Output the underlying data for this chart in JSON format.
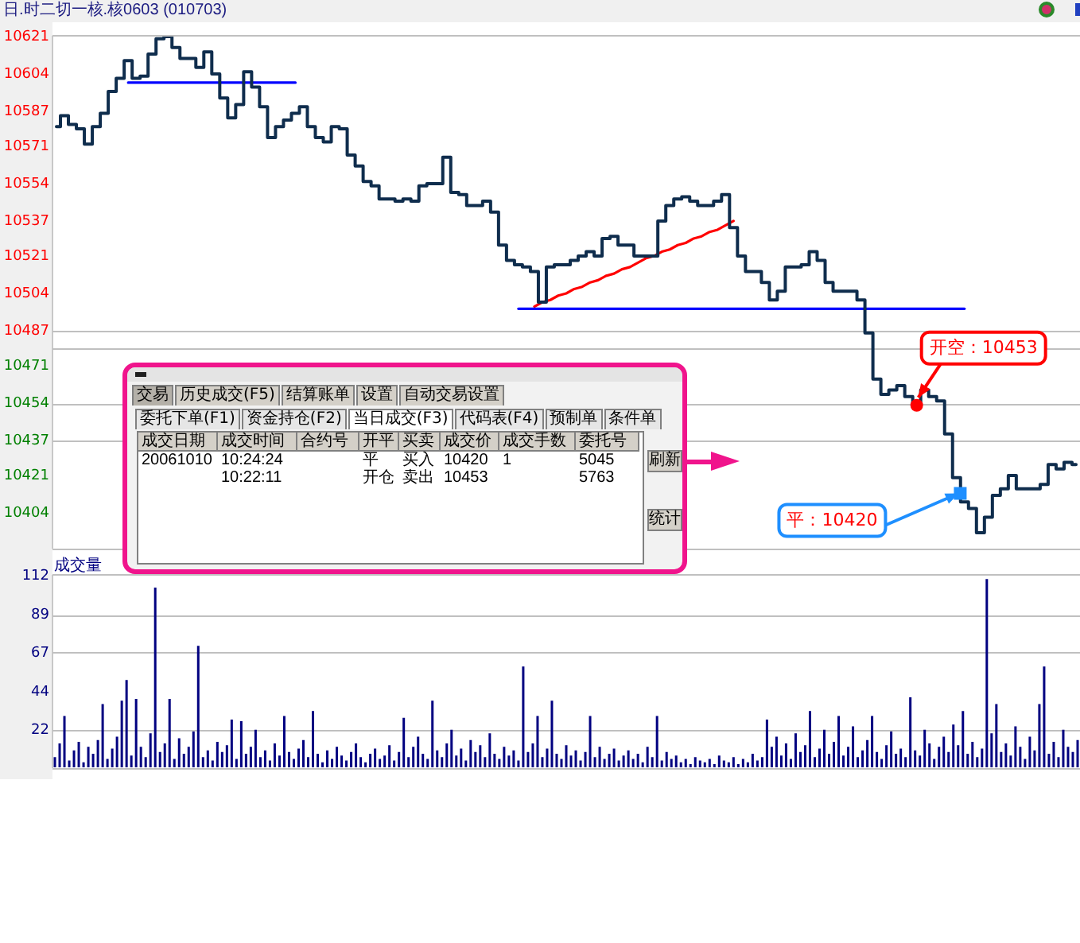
{
  "chart_data": [
    {
      "type": "step",
      "title": "日.时二切一核.核0603 (010703)",
      "categories": [
        null,
        null,
        null,
        null,
        null,
        null,
        null,
        null,
        null,
        null,
        null,
        null,
        null,
        null,
        null,
        null,
        null,
        null,
        null,
        null,
        null,
        null,
        null,
        null,
        null,
        null,
        null,
        null,
        null,
        null,
        null,
        null,
        null,
        null,
        null,
        null,
        null,
        null,
        null,
        null,
        null,
        null,
        null,
        null,
        null,
        null,
        null,
        null,
        null,
        null,
        null,
        null,
        null,
        null,
        null,
        null,
        null,
        null,
        null,
        null,
        null,
        null,
        null,
        null,
        null,
        null,
        null,
        null,
        null,
        null,
        null,
        null,
        null,
        null,
        null,
        null,
        null,
        null,
        null,
        null,
        null,
        null,
        null,
        null,
        null,
        null,
        null,
        null,
        null,
        null,
        null,
        null,
        null,
        null,
        null,
        null,
        null,
        null,
        null,
        null,
        null,
        null,
        null,
        null,
        null,
        null,
        null,
        null,
        null,
        null,
        null,
        null,
        null,
        null,
        null,
        null,
        null,
        null,
        null,
        null,
        null,
        null,
        null,
        null,
        null,
        null,
        null,
        null,
        null
      ],
      "series": [
        {
          "color": "#0f2d4d",
          "values": [
            10580,
            10585,
            10581,
            10579,
            10572,
            10580,
            10586,
            10596,
            10602,
            10610,
            10602,
            10603,
            10613,
            10620,
            10621,
            10616,
            10611,
            10611,
            10607,
            10614,
            10604,
            10593,
            10584,
            10590,
            10605,
            10598,
            10589,
            10575,
            10580,
            10583,
            10586,
            10589,
            10580,
            10575,
            10573,
            10580,
            10579,
            10567,
            10562,
            10555,
            10553,
            10547,
            10547,
            10546,
            10547,
            10546,
            10553,
            10554,
            10554,
            10566,
            10550,
            10549,
            10544,
            10544,
            10546,
            10541,
            10526,
            10519,
            10517,
            10516,
            10514,
            10500,
            10516,
            10517,
            10517,
            10519,
            10521,
            10523,
            10521,
            10529,
            10530,
            10526,
            10526,
            10521,
            10521,
            10521,
            10537,
            10544,
            10547,
            10548,
            10546,
            10544,
            10544,
            10546,
            10549,
            10534,
            10521,
            10514,
            10514,
            10509,
            10501,
            10505,
            10516,
            10516,
            10517,
            10523,
            10519,
            10509,
            10505,
            10505,
            10505,
            10501,
            10486,
            10465,
            10458,
            10460,
            10462,
            10457,
            10453,
            10460,
            10457,
            10455,
            10440,
            10420,
            10409,
            10406,
            10395,
            10402,
            10412,
            10415,
            10421,
            10415,
            10415,
            10415,
            10417,
            10426,
            10424,
            10427,
            10426
          ]
        },
        {
          "type": "line",
          "color": "#0000ff",
          "values": [
            null,
            null,
            null,
            null,
            null,
            null,
            null,
            null,
            null,
            10600,
            10600,
            10600,
            10600,
            10600,
            10600,
            10600,
            10600,
            10600,
            10600,
            10600,
            10600,
            10600,
            10600,
            10600,
            10600,
            10600,
            10600,
            10600,
            10600,
            10600,
            10600,
            null,
            null,
            null,
            null,
            null,
            null,
            null,
            null,
            null,
            null,
            null,
            null,
            null,
            null,
            null,
            null,
            null,
            null,
            null,
            null,
            null,
            null,
            null,
            null,
            null,
            null,
            null,
            null,
            null,
            null,
            null,
            null,
            null,
            null,
            null,
            null,
            null,
            null,
            null,
            null,
            null,
            null,
            null,
            null,
            null,
            null,
            null,
            null,
            null,
            null,
            null,
            null,
            null,
            null,
            null,
            null,
            null,
            null,
            null,
            null,
            null,
            null,
            null,
            null,
            null,
            null,
            null,
            null,
            null,
            null,
            null,
            null,
            null,
            null,
            null,
            null,
            null,
            null,
            null,
            null,
            null,
            null,
            null,
            null,
            null,
            null,
            null,
            null,
            null,
            null,
            null,
            null,
            null,
            null,
            null,
            null,
            null,
            null
          ]
        },
        {
          "type": "line",
          "color": "#0000ff",
          "values": [
            null,
            null,
            null,
            null,
            null,
            null,
            null,
            null,
            null,
            null,
            null,
            null,
            null,
            null,
            null,
            null,
            null,
            null,
            null,
            null,
            null,
            null,
            null,
            null,
            null,
            null,
            null,
            null,
            null,
            null,
            null,
            null,
            null,
            null,
            null,
            null,
            null,
            null,
            null,
            null,
            null,
            null,
            null,
            null,
            null,
            null,
            null,
            null,
            null,
            null,
            null,
            null,
            null,
            null,
            null,
            null,
            null,
            null,
            10497,
            10497,
            10497,
            10497,
            10497,
            10497,
            10497,
            10497,
            10497,
            10497,
            10497,
            10497,
            10497,
            10497,
            10497,
            10497,
            10497,
            10497,
            10497,
            10497,
            10497,
            10497,
            10497,
            10497,
            10497,
            10497,
            10497,
            10497,
            10497,
            10497,
            10497,
            10497,
            10497,
            10497,
            10497,
            10497,
            10497,
            10497,
            10497,
            10497,
            10497,
            10497,
            10497,
            10497,
            10497,
            10497,
            10497,
            10497,
            10497,
            10497,
            10497,
            10497,
            10497,
            10497,
            10497,
            10497,
            10497,
            null,
            null,
            null,
            null,
            null,
            null,
            null,
            null,
            null,
            null,
            null,
            null,
            null,
            null
          ]
        },
        {
          "type": "line",
          "color": "#ff0000",
          "values": [
            null,
            null,
            null,
            null,
            null,
            null,
            null,
            null,
            null,
            null,
            null,
            null,
            null,
            null,
            null,
            null,
            null,
            null,
            null,
            null,
            null,
            null,
            null,
            null,
            null,
            null,
            null,
            null,
            null,
            null,
            null,
            null,
            null,
            null,
            null,
            null,
            null,
            null,
            null,
            null,
            null,
            null,
            null,
            null,
            null,
            null,
            null,
            null,
            null,
            null,
            null,
            null,
            null,
            null,
            null,
            null,
            null,
            null,
            null,
            null,
            10498,
            10500,
            10501,
            10503,
            10504,
            10506,
            10507,
            10509,
            10510,
            10512,
            10513,
            10515,
            10516,
            10518,
            10520,
            10521,
            10523,
            10524,
            10526,
            10527,
            10529,
            10530,
            10532,
            10533,
            10535,
            10537,
            null,
            null,
            null,
            null,
            null,
            null,
            null,
            null,
            null,
            null,
            null,
            null,
            null,
            null,
            null,
            null,
            null,
            null,
            null,
            null,
            null,
            null,
            null,
            null,
            null,
            null,
            null,
            null,
            null,
            null,
            null,
            null,
            null,
            null,
            null,
            null,
            null,
            null,
            null,
            null,
            null,
            null,
            null
          ]
        }
      ],
      "ylim": [
        10388,
        10621
      ],
      "yticks": [
        10621,
        10604,
        10587,
        10571,
        10554,
        10537,
        10521,
        10504,
        10487,
        10471,
        10454,
        10437,
        10421,
        10404
      ],
      "ref_lines": [
        {
          "axis": "y",
          "value": 10479,
          "color": "#c0c0c0"
        },
        {
          "axis": "y",
          "value": 10487,
          "color": "#c0c0c0"
        },
        {
          "axis": "y",
          "value": 10454,
          "color": "#c0c0c0"
        },
        {
          "axis": "y",
          "value": 10437,
          "color": "#c0c0c0"
        }
      ],
      "annotations": [
        {
          "text": "开空：10453",
          "y": 10453
        },
        "平：10420"
      ],
      "grid": false,
      "legend": false,
      "tick_labels": "y",
      "marker": "none"
    },
    {
      "type": "bar",
      "title": "成交量",
      "categories": [
        null,
        null,
        null,
        null,
        null,
        null,
        null,
        null,
        null,
        null,
        null,
        null,
        null,
        null,
        null,
        null,
        null,
        null,
        null,
        null,
        null,
        null,
        null,
        null,
        null,
        null,
        null,
        null,
        null,
        null,
        null,
        null,
        null,
        null,
        null,
        null,
        null,
        null,
        null,
        null,
        null,
        null,
        null,
        null,
        null,
        null,
        null,
        null,
        null,
        null,
        null,
        null,
        null,
        null,
        null,
        null,
        null,
        null,
        null,
        null,
        null,
        null,
        null,
        null,
        null,
        null,
        null,
        null,
        null,
        null,
        null,
        null,
        null,
        null,
        null,
        null,
        null,
        null,
        null,
        null,
        null,
        null,
        null,
        null,
        null,
        null,
        null,
        null,
        null,
        null,
        null,
        null,
        null,
        null,
        null,
        null,
        null,
        null,
        null,
        null,
        null,
        null,
        null,
        null,
        null,
        null,
        null,
        null,
        null,
        null,
        null,
        null,
        null,
        null,
        null,
        null,
        null,
        null,
        null,
        null,
        null,
        null,
        null,
        null,
        null,
        null,
        null,
        null,
        null,
        null,
        null,
        null,
        null,
        null,
        null,
        null,
        null,
        null,
        null,
        null,
        null,
        null,
        null,
        null,
        null,
        null,
        null,
        null,
        null,
        null,
        null,
        null,
        null,
        null,
        null,
        null,
        null,
        null,
        null,
        null,
        null,
        null,
        null,
        null,
        null,
        null,
        null,
        null,
        null,
        null,
        null,
        null,
        null,
        null,
        null,
        null,
        null,
        null,
        null,
        null,
        null,
        null,
        null,
        null,
        null,
        null,
        null,
        null,
        null,
        null,
        null,
        null,
        null,
        null,
        null,
        null,
        null,
        null,
        null,
        null,
        null,
        null,
        null,
        null,
        null,
        null,
        null,
        null,
        null,
        null,
        null,
        null,
        null,
        null,
        null
      ],
      "color": "#000080",
      "values": [
        6,
        14,
        30,
        4,
        10,
        15,
        3,
        12,
        8,
        16,
        37,
        5,
        11,
        18,
        39,
        51,
        7,
        40,
        12,
        6,
        20,
        105,
        9,
        14,
        40,
        5,
        17,
        8,
        12,
        21,
        71,
        6,
        10,
        4,
        15,
        9,
        13,
        28,
        5,
        27,
        8,
        12,
        22,
        6,
        10,
        4,
        14,
        7,
        30,
        9,
        5,
        11,
        16,
        6,
        33,
        8,
        3,
        10,
        5,
        12,
        7,
        4,
        9,
        14,
        6,
        3,
        8,
        11,
        5,
        7,
        13,
        4,
        9,
        29,
        6,
        12,
        18,
        8,
        5,
        39,
        10,
        6,
        14,
        22,
        7,
        11,
        4,
        16,
        9,
        13,
        6,
        20,
        8,
        5,
        12,
        7,
        10,
        4,
        59,
        9,
        14,
        30,
        6,
        11,
        39,
        8,
        5,
        13,
        7,
        10,
        4,
        9,
        30,
        6,
        12,
        5,
        8,
        11,
        4,
        7,
        10,
        5,
        8,
        3,
        12,
        6,
        30,
        4,
        9,
        5,
        7,
        3,
        5,
        2,
        6,
        4,
        3,
        5,
        2,
        7,
        4,
        3,
        6,
        2,
        5,
        3,
        8,
        4,
        6,
        28,
        12,
        18,
        7,
        14,
        5,
        20,
        9,
        13,
        33,
        6,
        11,
        22,
        8,
        15,
        30,
        7,
        12,
        24,
        6,
        10,
        16,
        30,
        9,
        5,
        13,
        21,
        8,
        11,
        6,
        41,
        10,
        7,
        22,
        14,
        5,
        12,
        18,
        9,
        25,
        13,
        33,
        8,
        15,
        6,
        11,
        110,
        20,
        37,
        9,
        14,
        7,
        24,
        12,
        5,
        18,
        10,
        37,
        59,
        8,
        15,
        6,
        22,
        12,
        9,
        16
      ],
      "ylim": [
        0,
        112
      ],
      "yticks": [
        22,
        44,
        67,
        89,
        112
      ],
      "ref_lines": [
        {
          "axis": "y",
          "value": 89,
          "color": "#c0c0c0"
        },
        {
          "axis": "y",
          "value": 67,
          "color": "#c0c0c0"
        },
        {
          "axis": "y",
          "value": 22,
          "color": "#c0c0c0"
        }
      ],
      "grid": false,
      "legend": false,
      "tick_labels": "y"
    },
    {
      "type": "other",
      "categories": [
        "成交日期",
        "成交时间",
        "合约号",
        "开平",
        "买卖",
        "成交价",
        "成交手数",
        "委托号"
      ],
      "cell_labels": [
        [
          "20061010",
          "10:24:24",
          null,
          "平",
          "买入",
          "10420",
          "1",
          "5045"
        ],
        [
          null,
          "10:22:11",
          null,
          "开仓",
          "卖出",
          "10453",
          null,
          "5763"
        ]
      ],
      "annotations": [
        "交易",
        "历史成交(F5)",
        "结算账单",
        "设置",
        "自动交易设置",
        "委托下单(F1)",
        "资金持仓(F2)",
        "当日成交(F3)",
        "代码表(F4)",
        "预制单",
        "条件单",
        "刷新",
        "统计"
      ]
    }
  ]
}
